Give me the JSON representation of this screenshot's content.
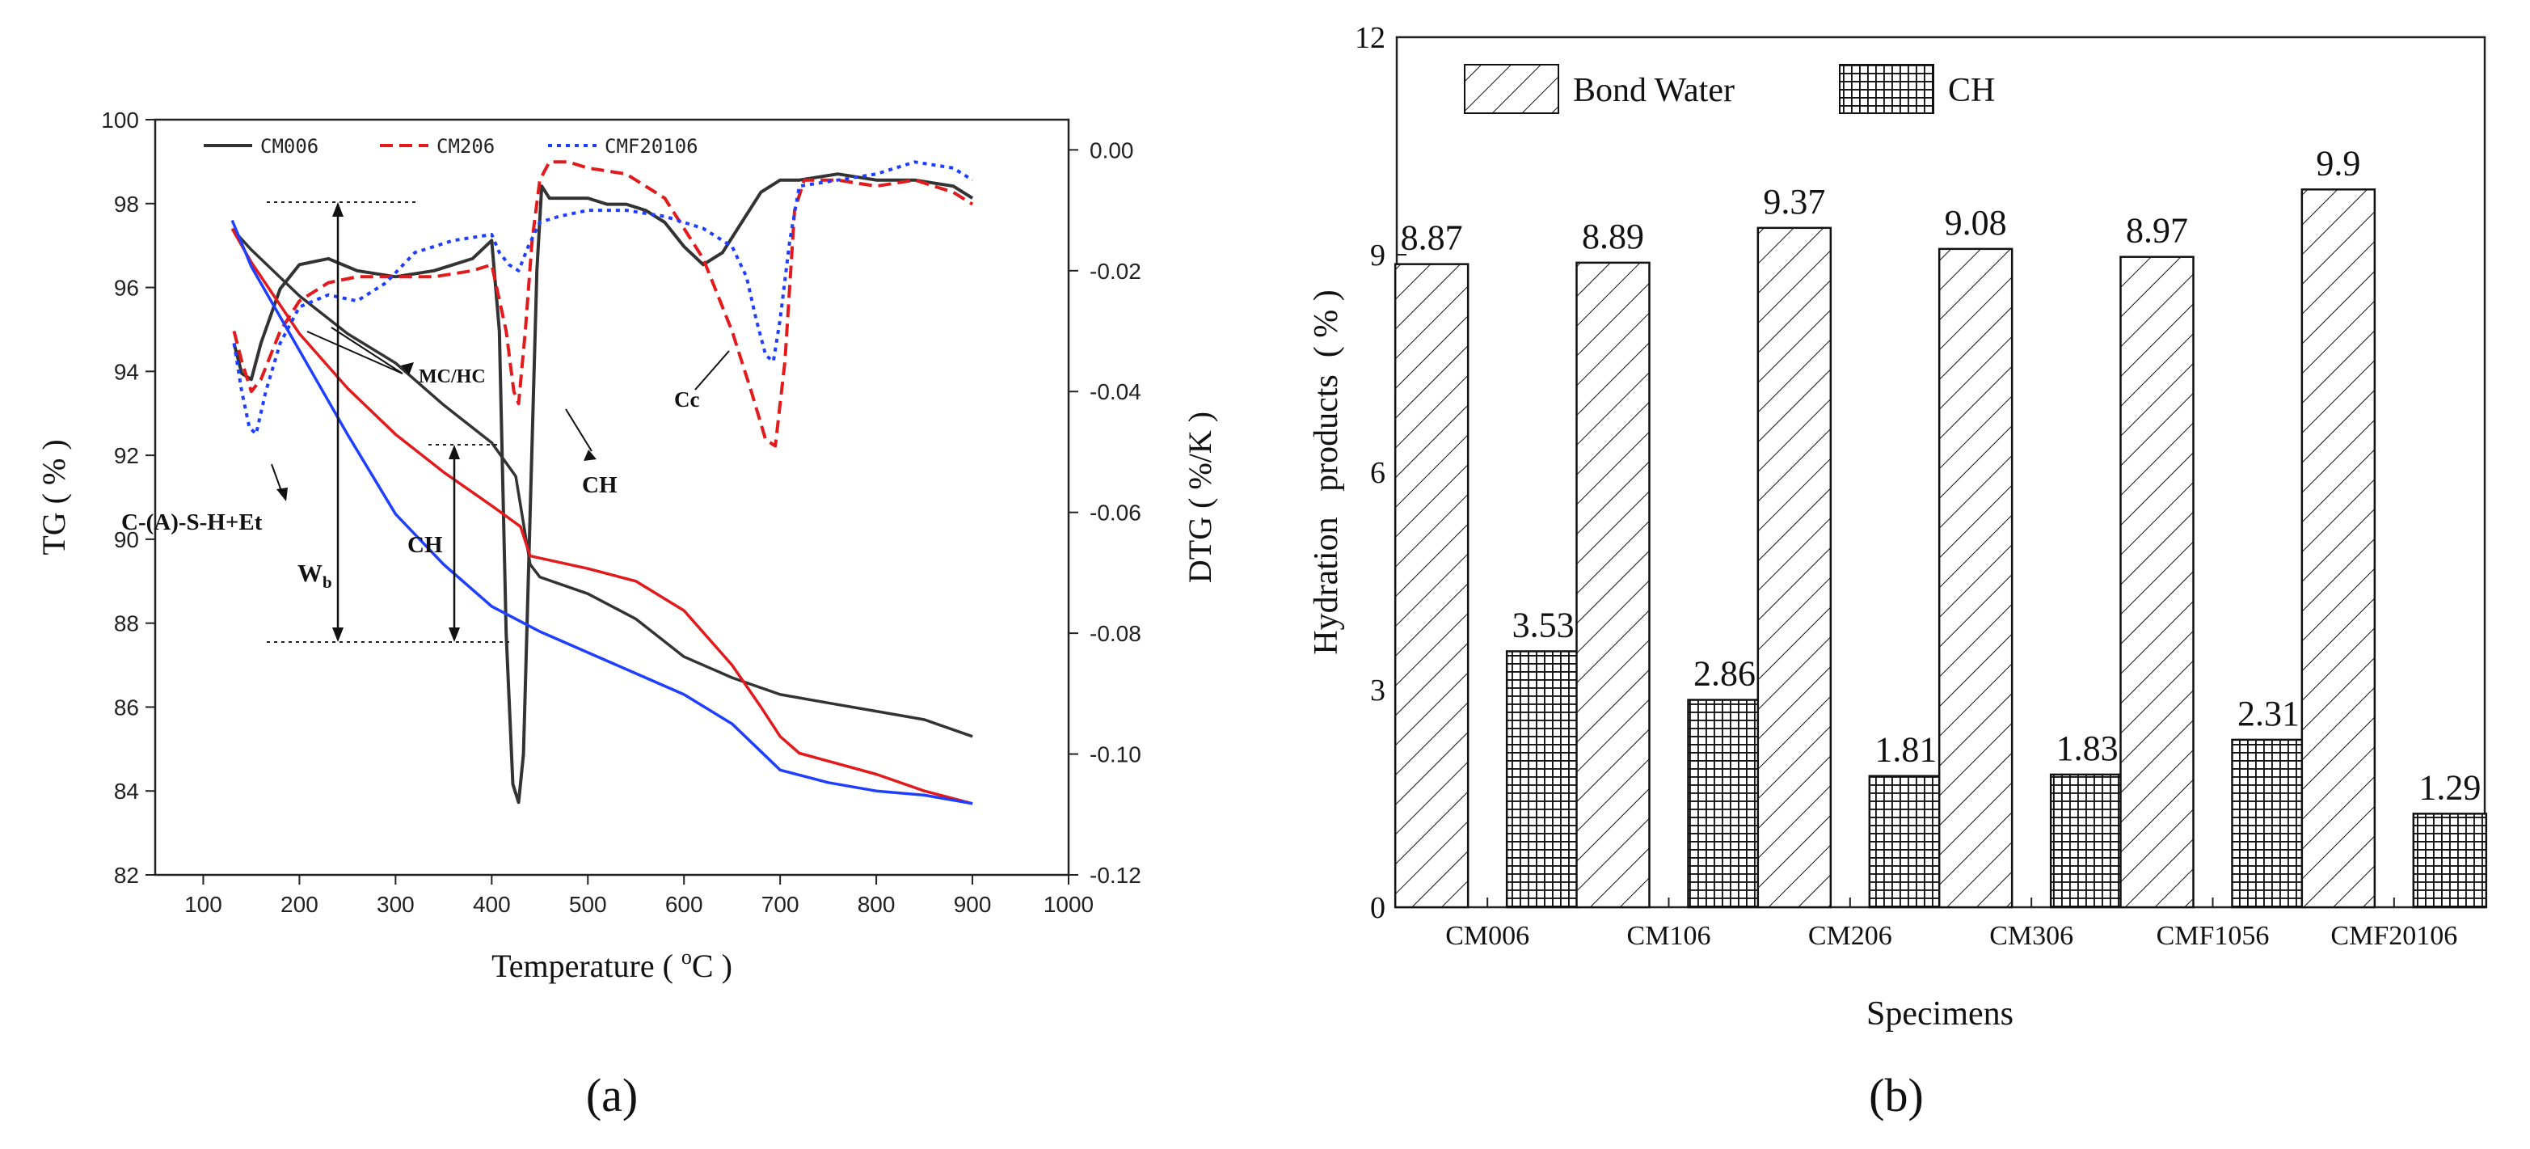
{
  "chart_data": [
    {
      "panel": "(a)",
      "type": "line",
      "xlabel": "Temperature ( °C )",
      "xlabel_main": "Temperature ( ",
      "xlabel_sup": "o",
      "xlabel_end": "C )",
      "ylabel_left": "TG ( % )",
      "ylabel_right": "DTG ( %/K )",
      "xlim": [
        50,
        1000
      ],
      "ylim_left": [
        82,
        100
      ],
      "ylim_right": [
        -0.12,
        0.005
      ],
      "x_ticks": [
        100,
        200,
        300,
        400,
        500,
        600,
        700,
        800,
        900,
        1000
      ],
      "y_ticks_left": [
        82,
        84,
        86,
        88,
        90,
        92,
        94,
        96,
        98,
        100
      ],
      "y_ticks_right": [
        0.0,
        -0.02,
        -0.04,
        -0.06,
        -0.08,
        -0.1,
        -0.12
      ],
      "y_tick_labels_right": [
        "0.00",
        "-0.02",
        "-0.04",
        "-0.06",
        "-0.08",
        "-0.10",
        "-0.12"
      ],
      "legend": [
        "CM006",
        "CM206",
        "CMF20106"
      ],
      "annotations": {
        "mc_hc": "MC/HC",
        "ch_top": "CH",
        "cc": "Cc",
        "csh": "C-(A)-S-H+Et",
        "wb": "W",
        "wb_sub": "b",
        "ch_mid": "CH"
      },
      "series": [
        {
          "name": "CM006",
          "color": "#333333",
          "dash": "solid",
          "tg": [
            [
              130,
              97.4
            ],
            [
              150,
              96.9
            ],
            [
              200,
              95.8
            ],
            [
              250,
              94.9
            ],
            [
              300,
              94.2
            ],
            [
              350,
              93.2
            ],
            [
              400,
              92.3
            ],
            [
              425,
              91.5
            ],
            [
              440,
              89.4
            ],
            [
              450,
              89.1
            ],
            [
              500,
              88.7
            ],
            [
              550,
              88.1
            ],
            [
              600,
              87.2
            ],
            [
              650,
              86.7
            ],
            [
              700,
              86.3
            ],
            [
              750,
              86.1
            ],
            [
              800,
              85.9
            ],
            [
              850,
              85.7
            ],
            [
              900,
              85.3
            ]
          ],
          "dtg": [
            [
              132,
              -0.032
            ],
            [
              140,
              -0.037
            ],
            [
              150,
              -0.038
            ],
            [
              160,
              -0.032
            ],
            [
              180,
              -0.023
            ],
            [
              200,
              -0.019
            ],
            [
              230,
              -0.018
            ],
            [
              260,
              -0.02
            ],
            [
              300,
              -0.021
            ],
            [
              340,
              -0.02
            ],
            [
              380,
              -0.018
            ],
            [
              400,
              -0.015
            ],
            [
              408,
              -0.03
            ],
            [
              415,
              -0.08
            ],
            [
              422,
              -0.105
            ],
            [
              428,
              -0.108
            ],
            [
              433,
              -0.1
            ],
            [
              440,
              -0.06
            ],
            [
              447,
              -0.02
            ],
            [
              452,
              -0.006
            ],
            [
              460,
              -0.008
            ],
            [
              480,
              -0.008
            ],
            [
              500,
              -0.008
            ],
            [
              520,
              -0.009
            ],
            [
              540,
              -0.009
            ],
            [
              560,
              -0.01
            ],
            [
              580,
              -0.012
            ],
            [
              600,
              -0.016
            ],
            [
              620,
              -0.019
            ],
            [
              640,
              -0.017
            ],
            [
              660,
              -0.012
            ],
            [
              680,
              -0.007
            ],
            [
              700,
              -0.005
            ],
            [
              720,
              -0.005
            ],
            [
              760,
              -0.004
            ],
            [
              800,
              -0.005
            ],
            [
              840,
              -0.005
            ],
            [
              880,
              -0.006
            ],
            [
              900,
              -0.008
            ]
          ]
        },
        {
          "name": "CM206",
          "color": "#e31a1c",
          "dash": "long",
          "tg": [
            [
              130,
              97.4
            ],
            [
              150,
              96.6
            ],
            [
              200,
              94.9
            ],
            [
              250,
              93.6
            ],
            [
              300,
              92.5
            ],
            [
              350,
              91.6
            ],
            [
              400,
              90.8
            ],
            [
              430,
              90.3
            ],
            [
              440,
              89.6
            ],
            [
              500,
              89.3
            ],
            [
              550,
              89.0
            ],
            [
              600,
              88.3
            ],
            [
              650,
              87.0
            ],
            [
              680,
              86.0
            ],
            [
              700,
              85.3
            ],
            [
              720,
              84.9
            ],
            [
              800,
              84.4
            ],
            [
              850,
              84.0
            ],
            [
              900,
              83.7
            ]
          ],
          "dtg": [
            [
              132,
              -0.03
            ],
            [
              140,
              -0.035
            ],
            [
              150,
              -0.04
            ],
            [
              160,
              -0.038
            ],
            [
              180,
              -0.03
            ],
            [
              200,
              -0.025
            ],
            [
              230,
              -0.022
            ],
            [
              260,
              -0.021
            ],
            [
              300,
              -0.021
            ],
            [
              340,
              -0.021
            ],
            [
              380,
              -0.02
            ],
            [
              400,
              -0.019
            ],
            [
              415,
              -0.03
            ],
            [
              423,
              -0.04
            ],
            [
              428,
              -0.042
            ],
            [
              435,
              -0.03
            ],
            [
              442,
              -0.015
            ],
            [
              450,
              -0.005
            ],
            [
              460,
              -0.002
            ],
            [
              480,
              -0.002
            ],
            [
              500,
              -0.003
            ],
            [
              540,
              -0.004
            ],
            [
              580,
              -0.008
            ],
            [
              620,
              -0.018
            ],
            [
              650,
              -0.03
            ],
            [
              670,
              -0.04
            ],
            [
              685,
              -0.048
            ],
            [
              695,
              -0.049
            ],
            [
              705,
              -0.035
            ],
            [
              715,
              -0.01
            ],
            [
              725,
              -0.005
            ],
            [
              760,
              -0.005
            ],
            [
              800,
              -0.006
            ],
            [
              840,
              -0.005
            ],
            [
              880,
              -0.007
            ],
            [
              900,
              -0.009
            ]
          ]
        },
        {
          "name": "CMF20106",
          "color": "#1f3fff",
          "dash": "dotted",
          "tg": [
            [
              130,
              97.6
            ],
            [
              150,
              96.5
            ],
            [
              200,
              94.5
            ],
            [
              250,
              92.5
            ],
            [
              300,
              90.6
            ],
            [
              350,
              89.4
            ],
            [
              400,
              88.4
            ],
            [
              450,
              87.8
            ],
            [
              500,
              87.3
            ],
            [
              550,
              86.8
            ],
            [
              600,
              86.3
            ],
            [
              650,
              85.6
            ],
            [
              700,
              84.5
            ],
            [
              750,
              84.2
            ],
            [
              800,
              84.0
            ],
            [
              850,
              83.9
            ],
            [
              900,
              83.7
            ]
          ],
          "dtg": [
            [
              132,
              -0.032
            ],
            [
              140,
              -0.04
            ],
            [
              148,
              -0.046
            ],
            [
              155,
              -0.047
            ],
            [
              165,
              -0.04
            ],
            [
              180,
              -0.032
            ],
            [
              200,
              -0.026
            ],
            [
              230,
              -0.024
            ],
            [
              260,
              -0.025
            ],
            [
              290,
              -0.022
            ],
            [
              320,
              -0.017
            ],
            [
              360,
              -0.015
            ],
            [
              400,
              -0.014
            ],
            [
              408,
              -0.017
            ],
            [
              418,
              -0.019
            ],
            [
              428,
              -0.02
            ],
            [
              438,
              -0.016
            ],
            [
              450,
              -0.012
            ],
            [
              470,
              -0.011
            ],
            [
              500,
              -0.01
            ],
            [
              540,
              -0.01
            ],
            [
              580,
              -0.011
            ],
            [
              620,
              -0.013
            ],
            [
              650,
              -0.016
            ],
            [
              665,
              -0.021
            ],
            [
              675,
              -0.028
            ],
            [
              685,
              -0.034
            ],
            [
              693,
              -0.035
            ],
            [
              700,
              -0.028
            ],
            [
              710,
              -0.015
            ],
            [
              720,
              -0.006
            ],
            [
              760,
              -0.005
            ],
            [
              800,
              -0.004
            ],
            [
              840,
              -0.002
            ],
            [
              880,
              -0.003
            ],
            [
              900,
              -0.005
            ]
          ]
        }
      ]
    },
    {
      "panel": "(b)",
      "type": "bar",
      "xlabel": "Specimens",
      "ylabel": "Hydration   products  ( % )",
      "ylim": [
        0,
        12
      ],
      "y_ticks": [
        0,
        3,
        6,
        9,
        12
      ],
      "categories": [
        "CM006",
        "CM106",
        "CM206",
        "CM306",
        "CMF1056",
        "CMF20106"
      ],
      "series": [
        {
          "name": "Bond Water",
          "pattern": "hatch",
          "values": [
            8.87,
            8.89,
            9.37,
            9.08,
            8.97,
            9.9
          ],
          "labels": [
            "8.87",
            "8.89",
            "9.37",
            "9.08",
            "8.97",
            "9.9"
          ]
        },
        {
          "name": "CH",
          "pattern": "grid",
          "values": [
            3.53,
            2.86,
            1.81,
            1.83,
            2.31,
            1.29
          ],
          "labels": [
            "3.53",
            "2.86",
            "1.81",
            "1.83",
            "2.31",
            "1.29"
          ]
        }
      ],
      "legend": [
        "Bond Water",
        "CH"
      ]
    }
  ]
}
